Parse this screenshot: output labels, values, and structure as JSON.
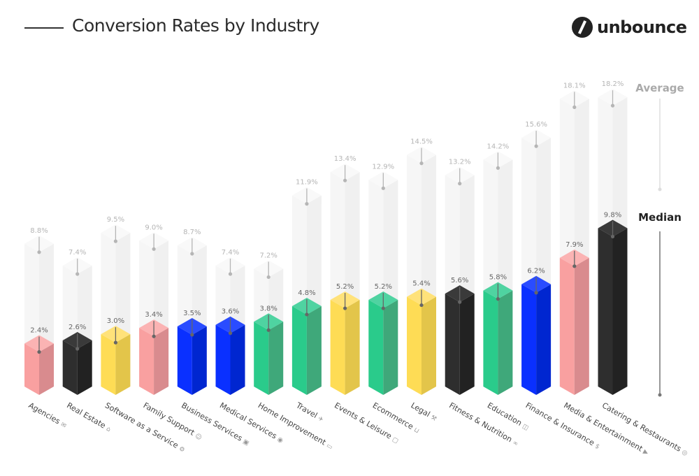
{
  "header": {
    "title": "Conversion Rates by Industry",
    "logo_text": "unbounce"
  },
  "legend": {
    "average_label": "Average",
    "median_label": "Median"
  },
  "chart_data": {
    "type": "bar",
    "title": "Conversion Rates by Industry",
    "categories": [
      "Agencies",
      "Real Estate",
      "Software as a Service",
      "Family Support",
      "Business Services",
      "Medical Services",
      "Home Improvement",
      "Travel",
      "Events & Leisure",
      "Ecommerce",
      "Legal",
      "Fitness & Nutrition",
      "Education",
      "Finance & Insurance",
      "Media & Entertainment",
      "Catering & Restaurants"
    ],
    "icons": [
      "megaphone-icon",
      "house-icon",
      "gear-icon",
      "family-icon",
      "briefcase-icon",
      "stethoscope-icon",
      "sofa-icon",
      "plane-icon",
      "ticket-icon",
      "cart-icon",
      "gavel-icon",
      "dumbbell-icon",
      "book-icon",
      "dollar-icon",
      "play-icon",
      "cookie-icon"
    ],
    "series": [
      {
        "name": "Median",
        "values": [
          2.4,
          2.6,
          3.0,
          3.4,
          3.5,
          3.6,
          3.8,
          4.8,
          5.2,
          5.2,
          5.4,
          5.6,
          5.8,
          6.2,
          7.9,
          9.8
        ],
        "colors": [
          "pink",
          "black",
          "yellow",
          "pink",
          "blue",
          "blue",
          "green",
          "green",
          "yellow",
          "green",
          "yellow",
          "black",
          "green",
          "blue",
          "pink",
          "black"
        ]
      },
      {
        "name": "Average",
        "values": [
          8.8,
          7.4,
          9.5,
          9.0,
          8.7,
          7.4,
          7.2,
          11.9,
          13.4,
          12.9,
          14.5,
          13.2,
          14.2,
          15.6,
          18.1,
          18.2
        ]
      }
    ],
    "value_suffix": "%",
    "palette": {
      "pink": "#f9a0a0",
      "black": "#2e2e2e",
      "yellow": "#fedc55",
      "blue": "#0a30ff",
      "green": "#2acb8b",
      "ghost": "#f4f4f4"
    },
    "grid": false,
    "legend_position": "right"
  }
}
